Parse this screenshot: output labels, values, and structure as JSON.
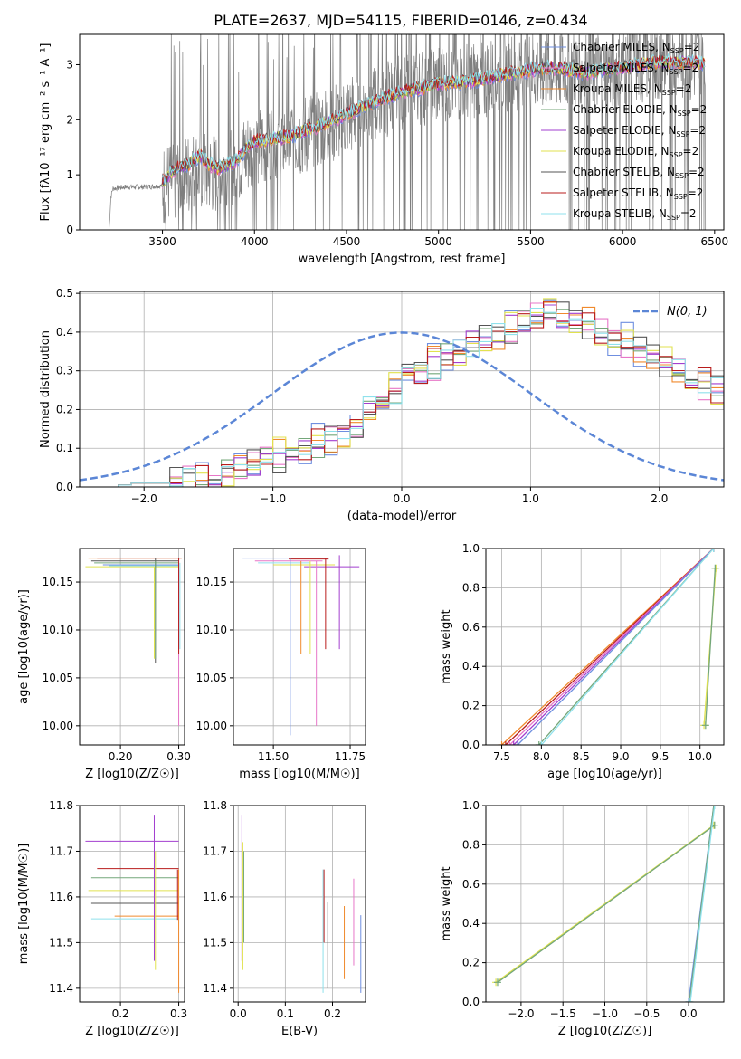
{
  "figure": {
    "title": "PLATE=2637, MJD=54115, FIBERID=0146, z=0.434"
  },
  "colors": {
    "series": [
      "#6f8fe0",
      "#e777c8",
      "#f08a2d",
      "#74a77a",
      "#a23fcf",
      "#e1e24f",
      "#555555",
      "#b81c1c",
      "#8fe1ec"
    ],
    "data": "#7f7f7f",
    "normal": "#5b86d6",
    "grid": "#b0b0b0"
  },
  "legend_entries": [
    {
      "base": "Chabrier MILES, N",
      "sub": "SSP",
      "tail": "=2"
    },
    {
      "base": "Salpeter MILES, N",
      "sub": "SSP",
      "tail": "=2"
    },
    {
      "base": "Kroupa MILES, N",
      "sub": "SSP",
      "tail": "=2"
    },
    {
      "base": "Chabrier ELODIE, N",
      "sub": "SSP",
      "tail": "=2"
    },
    {
      "base": "Salpeter ELODIE, N",
      "sub": "SSP",
      "tail": "=2"
    },
    {
      "base": "Kroupa ELODIE, N",
      "sub": "SSP",
      "tail": "=2"
    },
    {
      "base": "Chabrier STELIB, N",
      "sub": "SSP",
      "tail": "=2"
    },
    {
      "base": "Salpeter STELIB, N",
      "sub": "SSP",
      "tail": "=2"
    },
    {
      "base": "Kroupa STELIB, N",
      "sub": "SSP",
      "tail": "=2"
    }
  ],
  "chart_data": [
    {
      "id": "spectrum",
      "type": "line",
      "title": "PLATE=2637, MJD=54115, FIBERID=0146, z=0.434",
      "xlabel": "wavelength [Angstrom, rest frame]",
      "ylabel": "Flux [fλ10⁻¹⁷ erg cm⁻² s⁻¹ A⁻¹]",
      "xlim": [
        3050,
        6550
      ],
      "ylim": [
        0,
        3.55
      ],
      "xticks": [
        3500,
        4000,
        4500,
        5000,
        5500,
        6000,
        6500
      ],
      "yticks": [
        0,
        1,
        2,
        3
      ],
      "grid": false,
      "legend": "top-right",
      "data_continuum": [
        [
          3210,
          0
        ],
        [
          3220,
          0.6
        ],
        [
          3230,
          0.75
        ],
        [
          3300,
          0.78
        ],
        [
          3400,
          0.78
        ],
        [
          3500,
          0.8
        ],
        [
          3600,
          0.95
        ],
        [
          3700,
          1.1
        ],
        [
          3800,
          1.0
        ],
        [
          3900,
          1.2
        ],
        [
          4000,
          1.5
        ],
        [
          4200,
          1.65
        ],
        [
          4400,
          1.9
        ],
        [
          4600,
          2.2
        ],
        [
          4800,
          2.5
        ],
        [
          5000,
          2.65
        ],
        [
          5200,
          2.7
        ],
        [
          5400,
          2.85
        ],
        [
          5600,
          2.95
        ],
        [
          5800,
          2.85
        ],
        [
          6000,
          2.95
        ],
        [
          6200,
          3.05
        ],
        [
          6400,
          3.05
        ],
        [
          6450,
          3.0
        ]
      ],
      "model_continuum": [
        [
          3500,
          0.85
        ],
        [
          3550,
          1.05
        ],
        [
          3600,
          1.15
        ],
        [
          3650,
          1.2
        ],
        [
          3700,
          1.35
        ],
        [
          3750,
          1.2
        ],
        [
          3800,
          1.1
        ],
        [
          3900,
          1.25
        ],
        [
          3950,
          1.45
        ],
        [
          4000,
          1.6
        ],
        [
          4200,
          1.7
        ],
        [
          4400,
          1.95
        ],
        [
          4600,
          2.25
        ],
        [
          4800,
          2.5
        ],
        [
          5000,
          2.65
        ],
        [
          5200,
          2.72
        ],
        [
          5400,
          2.85
        ],
        [
          5600,
          2.95
        ],
        [
          5800,
          2.85
        ],
        [
          6000,
          2.95
        ],
        [
          6200,
          3.05
        ],
        [
          6400,
          3.05
        ],
        [
          6450,
          3.0
        ]
      ]
    },
    {
      "id": "residuals",
      "type": "line",
      "xlabel": "(data-model)/error",
      "ylabel": "Normed distribution",
      "xlim": [
        -2.5,
        2.5
      ],
      "ylim": [
        0,
        0.505
      ],
      "xticks": [
        -2,
        -1,
        0,
        1,
        2
      ],
      "yticks": [
        0.0,
        0.1,
        0.2,
        0.3,
        0.4,
        0.5
      ],
      "grid": true,
      "legend": "top-right",
      "normal_label": "N(0, 1)",
      "hist_bin_width": 0.1,
      "hist_start": -2.5,
      "hist_base": [
        0.0,
        0.0,
        0.0,
        0.005,
        0.01,
        0.01,
        0.01,
        0.015,
        0.02,
        0.02,
        0.03,
        0.04,
        0.05,
        0.06,
        0.07,
        0.08,
        0.09,
        0.1,
        0.11,
        0.12,
        0.14,
        0.17,
        0.2,
        0.22,
        0.25,
        0.28,
        0.3,
        0.32,
        0.34,
        0.35,
        0.37,
        0.38,
        0.39,
        0.41,
        0.43,
        0.44,
        0.45,
        0.44,
        0.43,
        0.42,
        0.4,
        0.38,
        0.37,
        0.35,
        0.34,
        0.32,
        0.3,
        0.28,
        0.27,
        0.25,
        0.23,
        0.22,
        0.21,
        0.2,
        0.19,
        0.18,
        0.17,
        0.15,
        0.14,
        0.13,
        0.12,
        0.11,
        0.1,
        0.09,
        0.08,
        0.07,
        0.06,
        0.055,
        0.05,
        0.04,
        0.035,
        0.03,
        0.03,
        0.02,
        0.02,
        0.02,
        0.015,
        0.015,
        0.01,
        0.01
      ],
      "hist_jitter": [
        0.03,
        -0.02,
        0.02,
        -0.01,
        0.01,
        0.025,
        -0.025,
        0.015,
        -0.015
      ]
    },
    {
      "id": "age-vs-Z",
      "type": "scatter",
      "xlabel": "Z [log10(Z/Z☉)]",
      "ylabel": "age  [log10(age/yr)]",
      "xlim": [
        0.13,
        0.31
      ],
      "ylim": [
        9.98,
        10.185
      ],
      "xticks": [
        0.2,
        0.3
      ],
      "yticks": [
        10.0,
        10.05,
        10.1,
        10.15
      ],
      "grid": true,
      "hlines": [
        {
          "y": 10.175,
          "x0": 0.145,
          "x1": 0.305,
          "c": 2
        },
        {
          "y": 10.175,
          "x0": 0.16,
          "x1": 0.305,
          "c": 7
        },
        {
          "y": 10.172,
          "x0": 0.15,
          "x1": 0.3,
          "c": 6
        },
        {
          "y": 10.17,
          "x0": 0.155,
          "x1": 0.3,
          "c": 3
        },
        {
          "y": 10.166,
          "x0": 0.14,
          "x1": 0.3,
          "c": 5
        },
        {
          "y": 10.168,
          "x0": 0.17,
          "x1": 0.3,
          "c": 0
        },
        {
          "y": 10.167,
          "x0": 0.18,
          "x1": 0.3,
          "c": 8
        }
      ],
      "vlines": [
        {
          "x": 0.26,
          "y0": 10.065,
          "y1": 10.175,
          "c": 6
        },
        {
          "x": 0.26,
          "y0": 10.07,
          "y1": 10.172,
          "c": 3
        },
        {
          "x": 0.3,
          "y0": 10.0,
          "y1": 10.175,
          "c": 1
        },
        {
          "x": 0.3,
          "y0": 10.075,
          "y1": 10.175,
          "c": 7
        },
        {
          "x": 0.302,
          "y0": 10.08,
          "y1": 10.17,
          "c": 8
        },
        {
          "x": 0.258,
          "y0": 10.07,
          "y1": 10.166,
          "c": 5
        }
      ]
    },
    {
      "id": "age-vs-mass",
      "type": "scatter",
      "xlabel": "mass [log10(M/M☉)]",
      "ylabel": "",
      "xlim": [
        11.37,
        11.8
      ],
      "ylim": [
        9.98,
        10.185
      ],
      "xticks": [
        11.5,
        11.75
      ],
      "yticks": [
        10.0,
        10.05,
        10.1,
        10.15
      ],
      "grid": true,
      "hlines": [
        {
          "y": 10.175,
          "x0": 11.4,
          "x1": 11.68,
          "c": 0
        },
        {
          "y": 10.174,
          "x0": 11.55,
          "x1": 11.68,
          "c": 7
        },
        {
          "y": 10.172,
          "x0": 11.44,
          "x1": 11.66,
          "c": 1
        },
        {
          "y": 10.168,
          "x0": 11.5,
          "x1": 11.7,
          "c": 5
        },
        {
          "y": 10.166,
          "x0": 11.6,
          "x1": 11.78,
          "c": 4
        },
        {
          "y": 10.17,
          "x0": 11.45,
          "x1": 11.62,
          "c": 8
        }
      ],
      "vlines": [
        {
          "x": 11.555,
          "y0": 9.99,
          "y1": 10.175,
          "c": 0
        },
        {
          "x": 11.59,
          "y0": 10.075,
          "y1": 10.172,
          "c": 2
        },
        {
          "x": 11.62,
          "y0": 10.075,
          "y1": 10.172,
          "c": 5
        },
        {
          "x": 11.64,
          "y0": 10.0,
          "y1": 10.172,
          "c": 1
        },
        {
          "x": 11.67,
          "y0": 10.08,
          "y1": 10.175,
          "c": 7
        },
        {
          "x": 11.715,
          "y0": 10.08,
          "y1": 10.178,
          "c": 4
        }
      ]
    },
    {
      "id": "massweight-vs-age",
      "type": "line",
      "xlabel": "age  [log10(age/yr)]",
      "ylabel": "mass weight",
      "xlim": [
        7.3,
        10.3
      ],
      "ylim": [
        0,
        1
      ],
      "xticks": [
        7.5,
        8.0,
        8.5,
        9.0,
        9.5,
        10.0
      ],
      "yticks": [
        0.0,
        0.2,
        0.4,
        0.6,
        0.8,
        1.0
      ],
      "grid": true,
      "lines": [
        {
          "x": [
            7.5,
            10.17
          ],
          "y": [
            0.0,
            1.0
          ],
          "c": 2
        },
        {
          "x": [
            7.55,
            10.17
          ],
          "y": [
            0.0,
            1.0
          ],
          "c": 7
        },
        {
          "x": [
            7.6,
            10.17
          ],
          "y": [
            0.0,
            1.0
          ],
          "c": 1
        },
        {
          "x": [
            7.65,
            10.17
          ],
          "y": [
            0.0,
            1.0
          ],
          "c": 4
        },
        {
          "x": [
            7.7,
            10.17
          ],
          "y": [
            0.0,
            1.0
          ],
          "c": 0
        },
        {
          "x": [
            7.97,
            10.17
          ],
          "y": [
            0.0,
            1.0
          ],
          "c": 3
        },
        {
          "x": [
            8.0,
            10.17
          ],
          "y": [
            0.0,
            1.0
          ],
          "c": 8
        },
        {
          "x": [
            10.05,
            10.2
          ],
          "y": [
            0.1,
            0.9
          ],
          "c": 5
        },
        {
          "x": [
            10.07,
            10.19
          ],
          "y": [
            0.1,
            0.9
          ],
          "c": 3
        }
      ]
    },
    {
      "id": "mass-vs-Z",
      "type": "scatter",
      "xlabel": "Z [log10(Z/Z☉)]",
      "ylabel": "mass [log10(M/M☉)]",
      "xlim": [
        0.13,
        0.31
      ],
      "ylim": [
        11.37,
        11.8
      ],
      "xticks": [
        0.2,
        0.3
      ],
      "yticks": [
        11.4,
        11.5,
        11.6,
        11.7,
        11.8
      ],
      "grid": true,
      "hlines": [
        {
          "y": 11.722,
          "x0": 0.14,
          "x1": 0.3,
          "c": 4
        },
        {
          "y": 11.662,
          "x0": 0.16,
          "x1": 0.3,
          "c": 7
        },
        {
          "y": 11.642,
          "x0": 0.15,
          "x1": 0.3,
          "c": 3
        },
        {
          "y": 11.614,
          "x0": 0.145,
          "x1": 0.3,
          "c": 5
        },
        {
          "y": 11.586,
          "x0": 0.15,
          "x1": 0.3,
          "c": 6
        },
        {
          "y": 11.558,
          "x0": 0.19,
          "x1": 0.3,
          "c": 2
        },
        {
          "y": 11.552,
          "x0": 0.15,
          "x1": 0.3,
          "c": 8
        }
      ],
      "vlines": [
        {
          "x": 0.258,
          "y0": 11.46,
          "y1": 11.78,
          "c": 4
        },
        {
          "x": 0.26,
          "y0": 11.44,
          "y1": 11.7,
          "c": 5
        },
        {
          "x": 0.3,
          "y0": 11.39,
          "y1": 11.66,
          "c": 2
        },
        {
          "x": 0.298,
          "y0": 11.55,
          "y1": 11.66,
          "c": 7
        }
      ]
    },
    {
      "id": "mass-vs-EBV",
      "type": "scatter",
      "xlabel": "E(B-V)",
      "ylabel": "",
      "xlim": [
        -0.01,
        0.27
      ],
      "ylim": [
        11.37,
        11.8
      ],
      "xticks": [
        0.0,
        0.1,
        0.2
      ],
      "yticks": [
        11.4,
        11.5,
        11.6,
        11.7,
        11.8
      ],
      "grid": true,
      "vlines": [
        {
          "x": 0.008,
          "y0": 11.46,
          "y1": 11.78,
          "c": 4
        },
        {
          "x": 0.01,
          "y0": 11.44,
          "y1": 11.72,
          "c": 5
        },
        {
          "x": 0.012,
          "y0": 11.5,
          "y1": 11.7,
          "c": 3
        },
        {
          "x": 0.18,
          "y0": 11.39,
          "y1": 11.66,
          "c": 8
        },
        {
          "x": 0.182,
          "y0": 11.5,
          "y1": 11.66,
          "c": 7
        },
        {
          "x": 0.19,
          "y0": 11.4,
          "y1": 11.59,
          "c": 6
        },
        {
          "x": 0.225,
          "y0": 11.42,
          "y1": 11.58,
          "c": 2
        },
        {
          "x": 0.245,
          "y0": 11.45,
          "y1": 11.64,
          "c": 1
        },
        {
          "x": 0.26,
          "y0": 11.39,
          "y1": 11.56,
          "c": 0
        }
      ]
    },
    {
      "id": "massweight-vs-Z",
      "type": "line",
      "xlabel": "Z [log10(Z/Z☉)]",
      "ylabel": "mass weight",
      "xlim": [
        -2.42,
        0.42
      ],
      "ylim": [
        0,
        1
      ],
      "xticks": [
        -2.0,
        -1.5,
        -1.0,
        -0.5,
        0.0
      ],
      "yticks": [
        0.0,
        0.2,
        0.4,
        0.6,
        0.8,
        1.0
      ],
      "grid": true,
      "lines": [
        {
          "x": [
            -2.3,
            0.3
          ],
          "y": [
            0.1,
            0.9
          ],
          "c": 5
        },
        {
          "x": [
            -2.28,
            0.31
          ],
          "y": [
            0.1,
            0.9
          ],
          "c": 3
        },
        {
          "x": [
            0.0,
            0.3
          ],
          "y": [
            0.0,
            1.0
          ],
          "c": 0
        },
        {
          "x": [
            0.01,
            0.3
          ],
          "y": [
            0.0,
            1.0
          ],
          "c": 3
        },
        {
          "x": [
            0.02,
            0.31
          ],
          "y": [
            0.0,
            1.0
          ],
          "c": 8
        }
      ]
    }
  ]
}
